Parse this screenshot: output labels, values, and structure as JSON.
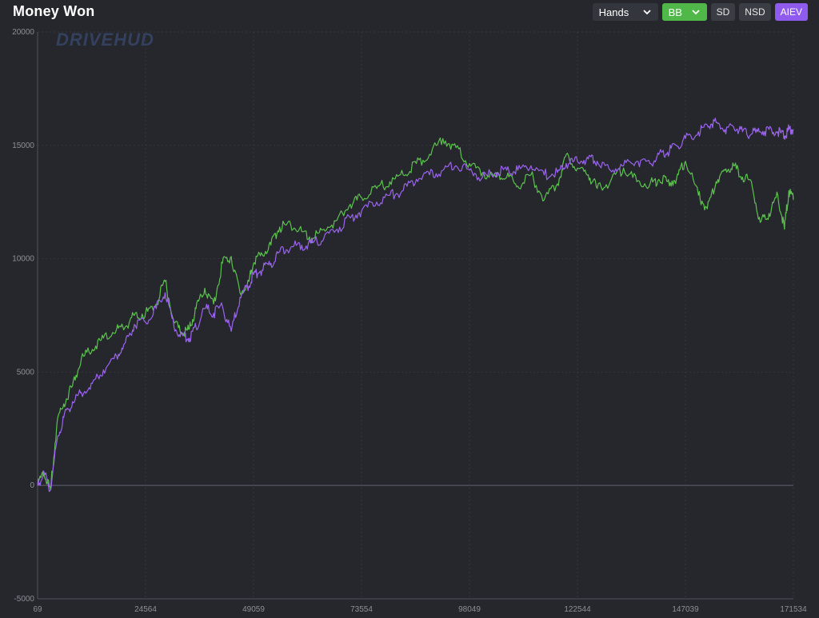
{
  "header": {
    "title": "Money Won",
    "hands_dropdown": "Hands",
    "unit_dropdown": "BB",
    "toggles": [
      "SD",
      "NSD",
      "AIEV"
    ]
  },
  "colors": {
    "background": "#25272c",
    "net_won": "#5cc24e",
    "allin_ev": "#9b63f0",
    "bb_button": "#4fb848",
    "aiev_button": "#8f5bee",
    "grid": "#34373d",
    "zero_line": "#4f535b"
  },
  "watermark": "DRIVEHUD",
  "chart_data": {
    "type": "line",
    "title": "",
    "xlabel": "",
    "ylabel": "",
    "xlim": [
      69,
      171534
    ],
    "ylim": [
      -5000,
      20000
    ],
    "x_ticks": [
      69,
      24564,
      49059,
      73554,
      98049,
      122544,
      147039,
      171534
    ],
    "y_ticks": [
      -5000,
      0,
      5000,
      10000,
      15000,
      20000
    ],
    "grid": true,
    "x": [
      69,
      1500,
      3000,
      4500,
      6000,
      8000,
      10000,
      12500,
      15000,
      18000,
      20000,
      22000,
      24564,
      27000,
      29000,
      31000,
      33000,
      34500,
      36000,
      38000,
      40000,
      42000,
      44000,
      46000,
      48000,
      49059,
      51000,
      53000,
      55000,
      57500,
      60000,
      62500,
      65000,
      68000,
      71000,
      73554,
      77000,
      80000,
      83000,
      86000,
      89000,
      92000,
      95000,
      98049,
      101000,
      104000,
      106500,
      109000,
      112000,
      115000,
      118000,
      120000,
      122544,
      125000,
      127000,
      130000,
      133000,
      136000,
      139000,
      141000,
      143000,
      145000,
      147039,
      150000,
      152000,
      154000,
      156000,
      158000,
      160000,
      162000,
      164000,
      166000,
      168000,
      169500,
      170500,
      171534
    ],
    "series": [
      {
        "name": "",
        "values": [
          0,
          600,
          -200,
          2800,
          3600,
          4400,
          5600,
          6000,
          6500,
          6900,
          7000,
          7500,
          7600,
          8000,
          9000,
          7200,
          6700,
          6900,
          7800,
          8700,
          8000,
          9800,
          10100,
          8500,
          9000,
          9800,
          10200,
          10600,
          11400,
          11500,
          11200,
          10900,
          11300,
          11700,
          12400,
          12700,
          13100,
          13400,
          13700,
          14200,
          14600,
          15300,
          14900,
          14200,
          13800,
          13600,
          13600,
          13200,
          13700,
          12600,
          13300,
          14600,
          14000,
          13700,
          13100,
          13400,
          14000,
          13400,
          13300,
          13500,
          13400,
          13500,
          14300,
          12800,
          12200,
          13400,
          13900,
          14100,
          13600,
          13400,
          11600,
          12000,
          12800,
          11300,
          13000,
          12600
        ]
      },
      {
        "name": "",
        "values": [
          0,
          600,
          -200,
          2000,
          3000,
          3700,
          4100,
          4500,
          5100,
          5700,
          6300,
          7100,
          7200,
          7800,
          8500,
          7000,
          6600,
          6500,
          7000,
          7800,
          7600,
          7900,
          6800,
          8300,
          8800,
          9300,
          9500,
          9800,
          10300,
          10500,
          10600,
          10700,
          10900,
          11300,
          11800,
          12100,
          12500,
          12800,
          13000,
          13500,
          13700,
          13900,
          14100,
          13900,
          13600,
          13800,
          13900,
          13900,
          14100,
          13700,
          13800,
          14200,
          14300,
          14400,
          14300,
          13900,
          14100,
          14300,
          14200,
          14600,
          14700,
          15000,
          15300,
          15600,
          15900,
          16000,
          15700,
          15800,
          15600,
          15500,
          15600,
          15700,
          15600,
          15400,
          15700,
          15700
        ]
      }
    ]
  }
}
